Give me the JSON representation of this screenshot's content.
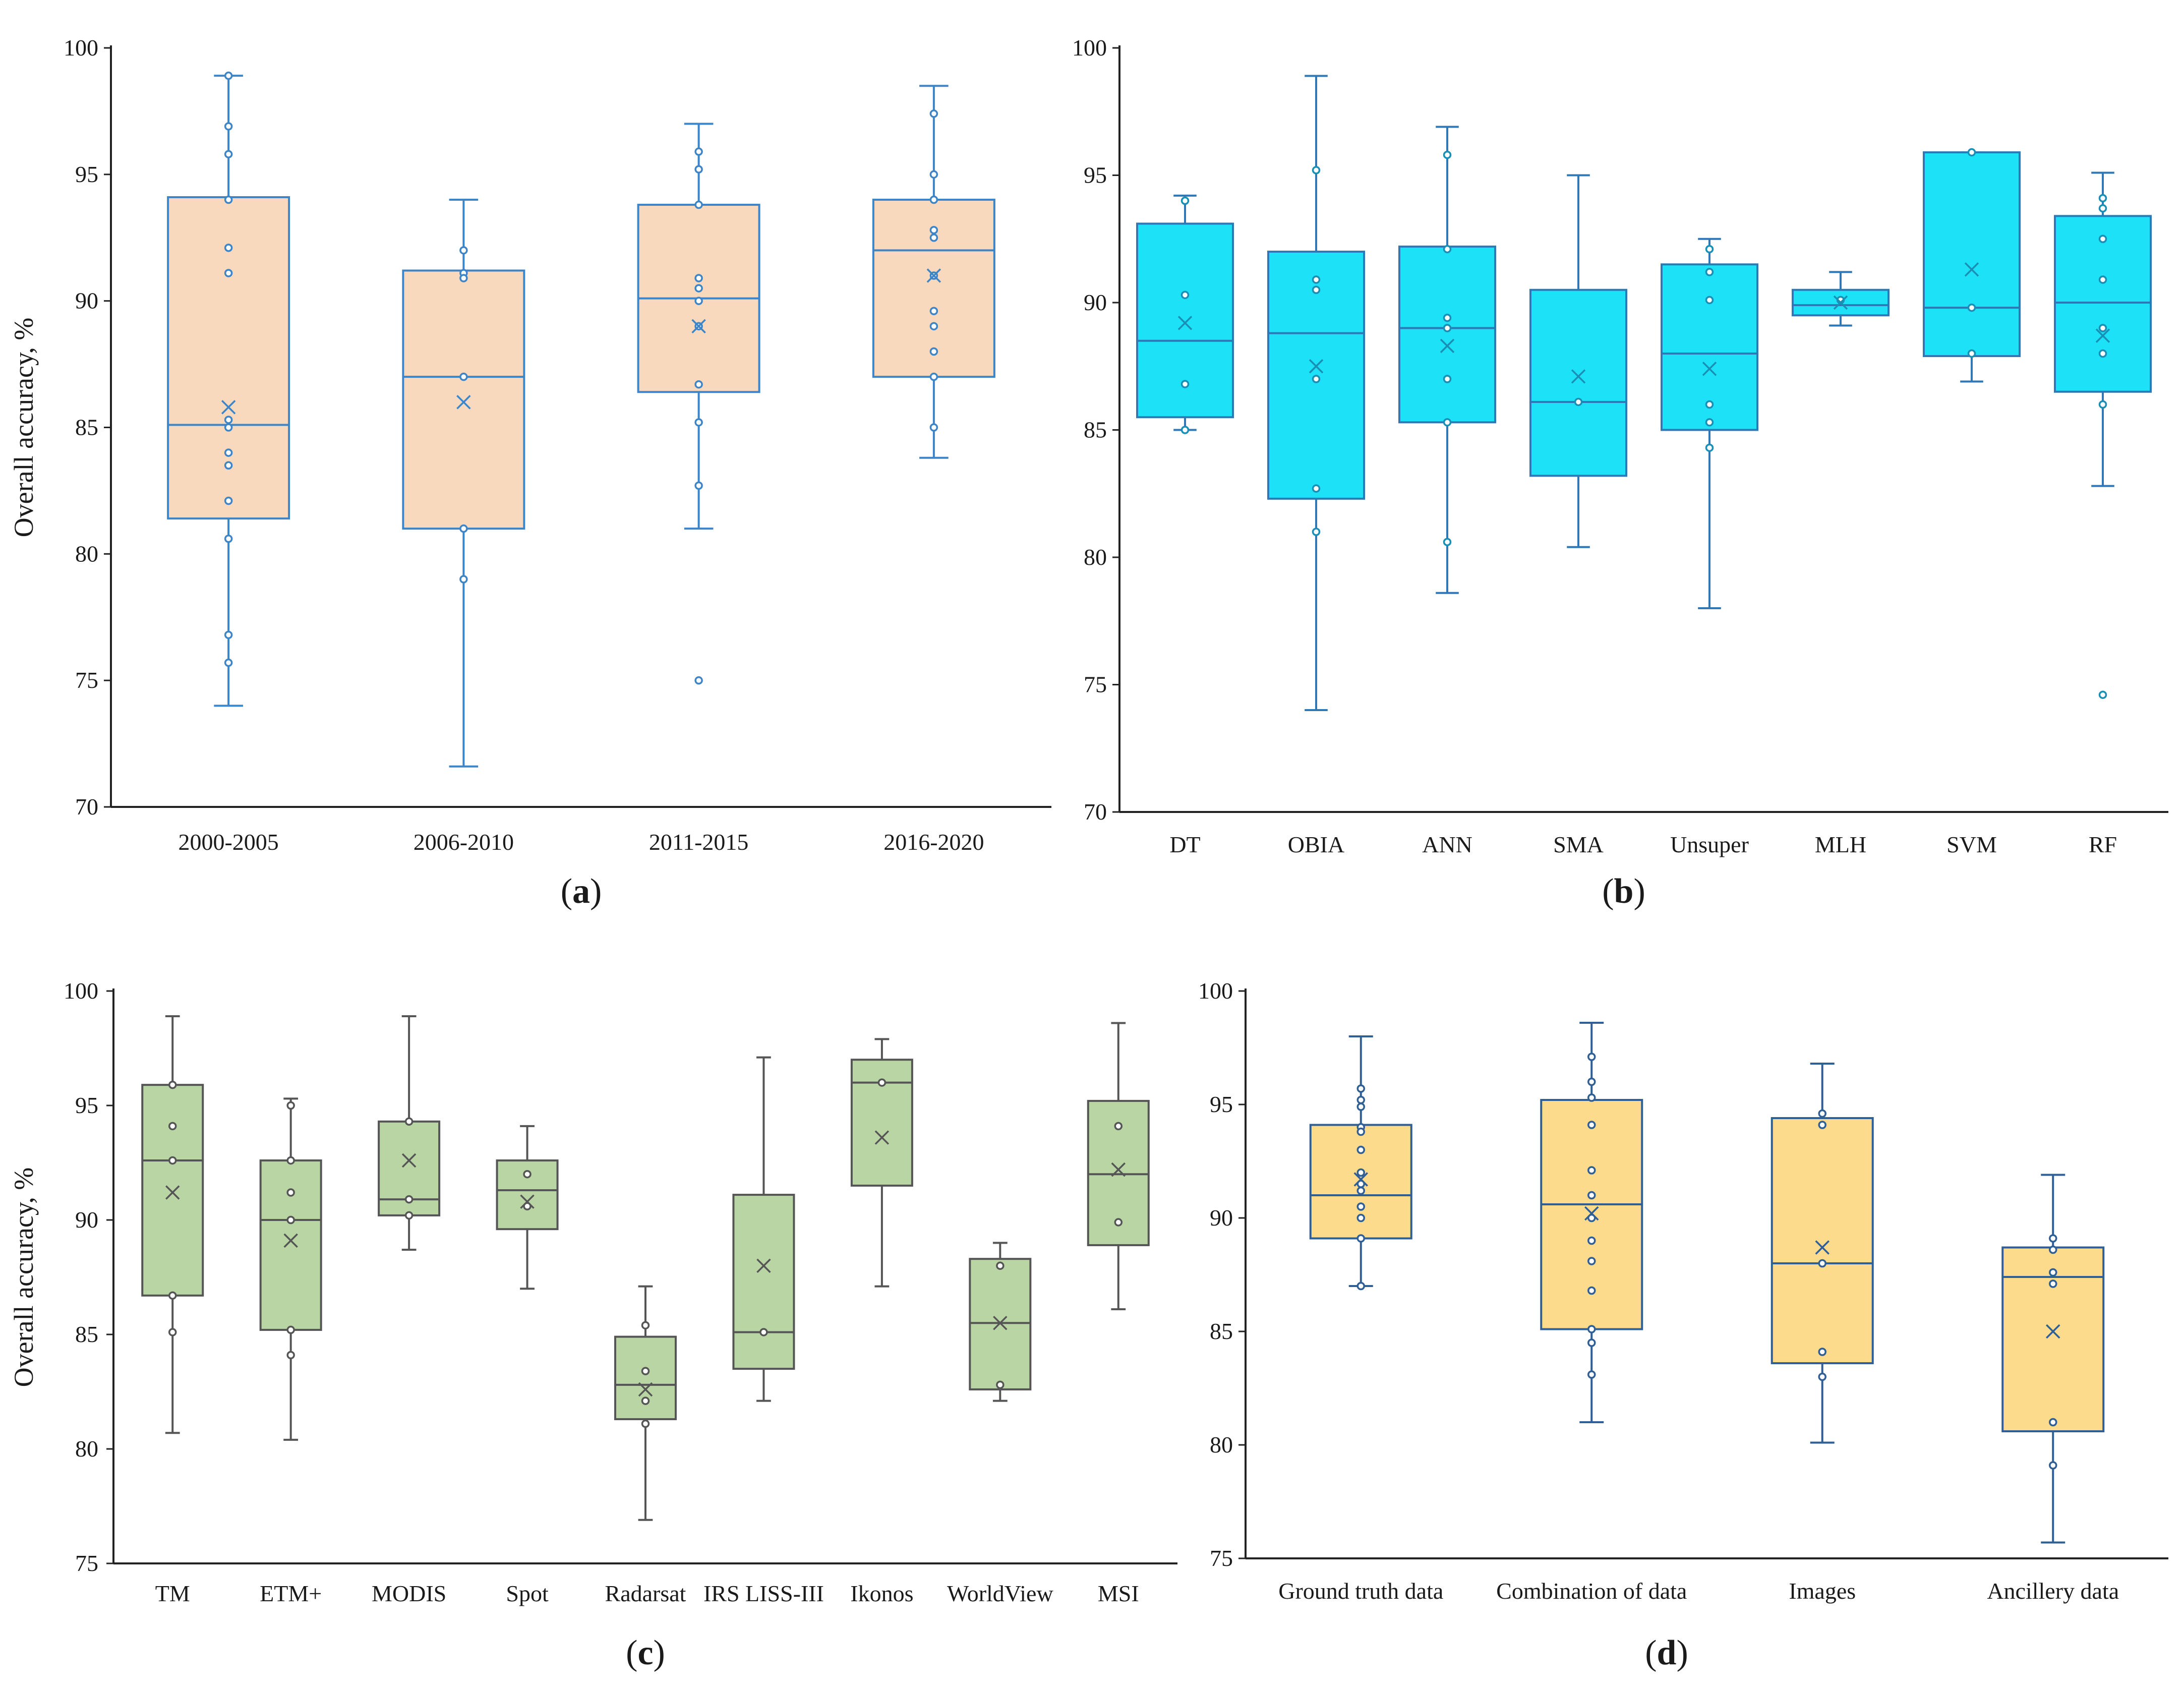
{
  "chart_data": [
    {
      "id": "a",
      "type": "box",
      "panel_label": "a",
      "ylabel": "Overall accuracy, %",
      "ylim": [
        70,
        100
      ],
      "yticks": [
        70,
        75,
        80,
        85,
        90,
        95,
        100
      ],
      "grid": false,
      "colors": {
        "fill": "#f9d9bd",
        "stroke": "#3d85c6",
        "point": "#3d85c6"
      },
      "boxes": [
        {
          "label": "2000-2005",
          "min": 74.0,
          "q1": 81.4,
          "median": 85.1,
          "q3": 94.1,
          "max": 98.9,
          "mean": 85.8,
          "points": [
            98.9,
            96.9,
            95.8,
            94.0,
            92.1,
            91.1,
            85.3,
            85.0,
            84.0,
            83.5,
            82.1,
            80.6,
            76.8,
            75.7
          ]
        },
        {
          "label": "2006-2010",
          "min": 71.6,
          "q1": 81.0,
          "median": 87.0,
          "q3": 91.2,
          "max": 94.0,
          "mean": 86.0,
          "points": [
            92.0,
            91.1,
            90.9,
            87.0,
            81.0,
            79.0
          ]
        },
        {
          "label": "2011-2015",
          "min": 81.0,
          "q1": 86.4,
          "median": 90.1,
          "q3": 93.8,
          "max": 97.0,
          "mean": 89.0,
          "points": [
            95.9,
            95.2,
            93.8,
            90.9,
            90.5,
            90.0,
            89.0,
            86.7,
            85.2,
            82.7,
            75.0
          ]
        },
        {
          "label": "2016-2020",
          "min": 83.8,
          "q1": 87.0,
          "median": 92.0,
          "q3": 94.0,
          "max": 98.5,
          "mean": 91.0,
          "points": [
            97.4,
            95.0,
            94.0,
            92.8,
            92.5,
            91.0,
            89.6,
            89.0,
            88.0,
            87.0,
            85.0
          ]
        }
      ]
    },
    {
      "id": "b",
      "type": "box",
      "panel_label": "b",
      "ylabel": "",
      "ylim": [
        70,
        100
      ],
      "yticks": [
        70,
        75,
        80,
        85,
        90,
        95,
        100
      ],
      "grid": false,
      "colors": {
        "fill": "#1de2f7",
        "stroke": "#2f78b5",
        "point": "#1a8fb5"
      },
      "boxes": [
        {
          "label": "DT",
          "min": 85.0,
          "q1": 85.5,
          "median": 88.5,
          "q3": 93.1,
          "max": 94.2,
          "mean": 89.2,
          "points": [
            94.0,
            90.3,
            86.8,
            85.0
          ]
        },
        {
          "label": "OBIA",
          "min": 74.0,
          "q1": 82.3,
          "median": 88.8,
          "q3": 92.0,
          "max": 98.9,
          "mean": 87.5,
          "points": [
            95.2,
            90.9,
            90.5,
            87.0,
            82.7,
            81.0
          ]
        },
        {
          "label": "ANN",
          "min": 78.6,
          "q1": 85.3,
          "median": 89.0,
          "q3": 92.2,
          "max": 96.9,
          "mean": 88.3,
          "points": [
            95.8,
            92.1,
            89.4,
            89.0,
            87.0,
            85.3,
            80.6
          ]
        },
        {
          "label": "SMA",
          "min": 80.4,
          "q1": 83.2,
          "median": 86.1,
          "q3": 90.5,
          "max": 95.0,
          "mean": 87.1,
          "points": [
            86.1
          ]
        },
        {
          "label": "Unsuper",
          "min": 78.0,
          "q1": 85.0,
          "median": 88.0,
          "q3": 91.5,
          "max": 92.5,
          "mean": 87.4,
          "points": [
            92.1,
            91.2,
            90.1,
            86.0,
            85.3,
            84.3
          ]
        },
        {
          "label": "MLH",
          "min": 89.1,
          "q1": 89.5,
          "median": 89.9,
          "q3": 90.5,
          "max": 91.2,
          "mean": 90.0,
          "points": [
            90.1
          ]
        },
        {
          "label": "SVM",
          "min": 86.9,
          "q1": 87.9,
          "median": 89.8,
          "q3": 95.9,
          "max": 95.9,
          "mean": 91.3,
          "points": [
            95.9,
            89.8,
            88.0
          ]
        },
        {
          "label": "RF",
          "min": 82.8,
          "q1": 86.5,
          "median": 90.0,
          "q3": 93.4,
          "max": 95.1,
          "mean": 88.7,
          "points": [
            94.1,
            93.7,
            92.5,
            90.9,
            89.0,
            88.0,
            86.0,
            74.6
          ]
        }
      ]
    },
    {
      "id": "c",
      "type": "box",
      "panel_label": "c",
      "ylabel": "Overall accuracy, %",
      "ylim": [
        75,
        100
      ],
      "yticks": [
        75,
        80,
        85,
        90,
        95,
        100
      ],
      "grid": false,
      "colors": {
        "fill": "#b8d5a3",
        "stroke": "#555555",
        "point": "#555555"
      },
      "boxes": [
        {
          "label": "TM",
          "min": 80.7,
          "q1": 86.7,
          "median": 92.6,
          "q3": 95.9,
          "max": 98.9,
          "mean": 91.2,
          "points": [
            95.9,
            94.1,
            92.6,
            86.7,
            85.1
          ]
        },
        {
          "label": "ETM+",
          "min": 80.4,
          "q1": 85.2,
          "median": 90.0,
          "q3": 92.6,
          "max": 95.3,
          "mean": 89.1,
          "points": [
            95.0,
            92.6,
            91.2,
            90.0,
            85.2,
            84.1
          ]
        },
        {
          "label": "MODIS",
          "min": 88.7,
          "q1": 90.2,
          "median": 90.9,
          "q3": 94.3,
          "max": 98.9,
          "mean": 92.6,
          "points": [
            94.3,
            90.9,
            90.2
          ]
        },
        {
          "label": "Spot",
          "min": 87.0,
          "q1": 89.6,
          "median": 91.3,
          "q3": 92.6,
          "max": 94.1,
          "mean": 90.8,
          "points": [
            92.0,
            90.6
          ]
        },
        {
          "label": "Radarsat",
          "min": 76.9,
          "q1": 81.3,
          "median": 82.8,
          "q3": 84.9,
          "max": 87.1,
          "mean": 82.6,
          "points": [
            85.4,
            83.4,
            82.1,
            81.1
          ]
        },
        {
          "label": "IRS LISS-III",
          "min": 82.1,
          "q1": 83.5,
          "median": 85.1,
          "q3": 91.1,
          "max": 97.1,
          "mean": 88.0,
          "points": [
            85.1
          ]
        },
        {
          "label": "Ikonos",
          "min": 87.1,
          "q1": 91.5,
          "median": 96.0,
          "q3": 97.0,
          "max": 97.9,
          "mean": 93.6,
          "points": [
            96.0
          ]
        },
        {
          "label": "WorldView",
          "min": 82.1,
          "q1": 82.6,
          "median": 85.5,
          "q3": 88.3,
          "max": 89.0,
          "mean": 85.5,
          "points": [
            88.0,
            82.8
          ]
        },
        {
          "label": "MSI",
          "min": 86.1,
          "q1": 88.9,
          "median": 92.0,
          "q3": 95.2,
          "max": 98.6,
          "mean": 92.2,
          "points": [
            94.1,
            89.9
          ]
        }
      ]
    },
    {
      "id": "d",
      "type": "box",
      "panel_label": "d",
      "ylabel": "",
      "ylim": [
        75,
        100
      ],
      "yticks": [
        75,
        80,
        85,
        90,
        95,
        100
      ],
      "grid": false,
      "colors": {
        "fill": "#fcdc8c",
        "stroke": "#2f5f95",
        "point": "#2f5f95"
      },
      "boxes": [
        {
          "label": "Ground truth data",
          "min": 87.0,
          "q1": 89.1,
          "median": 91.0,
          "q3": 94.1,
          "max": 98.0,
          "mean": 91.7,
          "points": [
            95.7,
            95.2,
            94.9,
            94.0,
            93.8,
            93.0,
            92.0,
            91.5,
            91.2,
            90.5,
            90.0,
            89.1,
            87.0
          ]
        },
        {
          "label": "Combination of data",
          "min": 81.0,
          "q1": 85.1,
          "median": 90.6,
          "q3": 95.2,
          "max": 98.6,
          "mean": 90.2,
          "points": [
            97.1,
            96.0,
            95.3,
            94.1,
            92.1,
            91.0,
            90.0,
            89.0,
            88.1,
            86.8,
            85.1,
            84.5,
            83.1
          ]
        },
        {
          "label": "Images",
          "min": 80.1,
          "q1": 83.6,
          "median": 88.0,
          "q3": 94.4,
          "max": 96.8,
          "mean": 88.7,
          "points": [
            94.6,
            94.1,
            88.0,
            84.1,
            83.0
          ]
        },
        {
          "label": "Ancillery data",
          "min": 75.7,
          "q1": 80.6,
          "median": 87.4,
          "q3": 88.7,
          "max": 91.9,
          "mean": 85.0,
          "points": [
            89.1,
            88.6,
            87.6,
            87.1,
            81.0,
            79.1
          ]
        }
      ]
    }
  ]
}
